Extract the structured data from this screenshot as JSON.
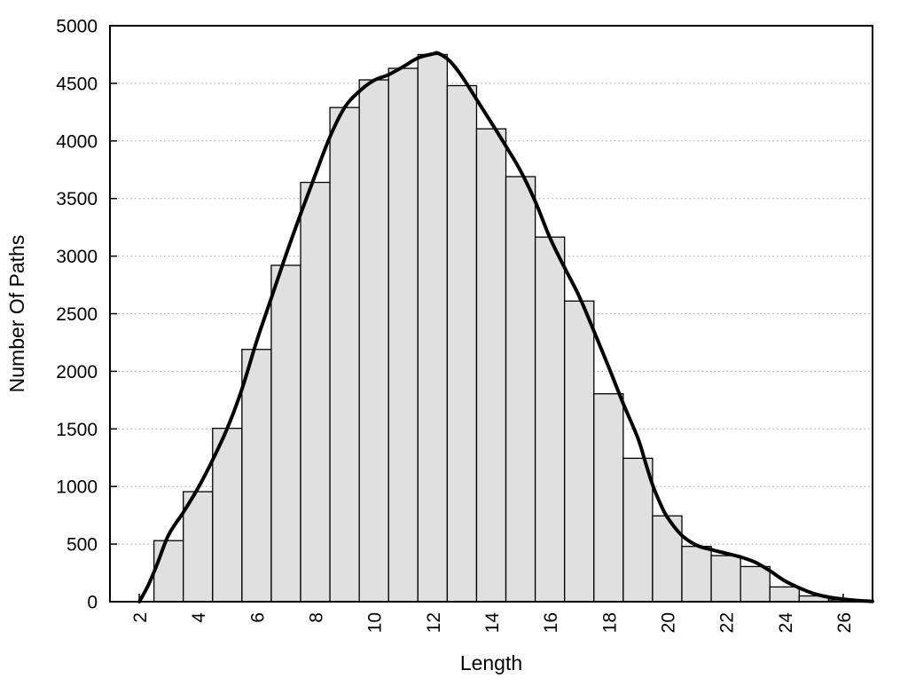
{
  "figure": {
    "background": "#ffffff",
    "title": ""
  },
  "chart_data": {
    "type": "bar",
    "subtype": "histogram-with-smoothed-curve",
    "title": "",
    "xlabel": "Length",
    "ylabel": "Number Of Paths",
    "xlim": [
      1,
      27
    ],
    "ylim": [
      0,
      5000
    ],
    "x_ticks": [
      2,
      4,
      6,
      8,
      10,
      12,
      14,
      16,
      18,
      20,
      22,
      24,
      26
    ],
    "y_ticks": [
      0,
      500,
      1000,
      1500,
      2000,
      2500,
      3000,
      3500,
      4000,
      4500,
      5000
    ],
    "grid": {
      "horizontal": true,
      "vertical": false,
      "style": "dotted"
    },
    "legend": "none",
    "bar_width": 1,
    "categories": [
      3,
      4,
      5,
      6,
      7,
      8,
      9,
      10,
      11,
      12,
      13,
      14,
      15,
      16,
      17,
      18,
      19,
      20,
      21,
      22,
      23,
      24,
      25,
      26
    ],
    "values": [
      530,
      955,
      1505,
      2190,
      2920,
      3640,
      4290,
      4530,
      4630,
      4750,
      4480,
      4105,
      3690,
      3165,
      2610,
      1805,
      1245,
      745,
      480,
      400,
      305,
      128,
      50,
      15
    ],
    "series": [
      {
        "name": "smoothed-frequency-curve",
        "type": "line",
        "points": [
          [
            2,
            0
          ],
          [
            2.3,
            140
          ],
          [
            2.6,
            320
          ],
          [
            3,
            580
          ],
          [
            3.5,
            775
          ],
          [
            4,
            985
          ],
          [
            4.5,
            1230
          ],
          [
            5,
            1505
          ],
          [
            5.5,
            1845
          ],
          [
            6,
            2260
          ],
          [
            6.5,
            2635
          ],
          [
            7,
            3010
          ],
          [
            7.5,
            3365
          ],
          [
            8,
            3705
          ],
          [
            8.5,
            4035
          ],
          [
            9,
            4290
          ],
          [
            9.5,
            4430
          ],
          [
            10,
            4525
          ],
          [
            10.5,
            4575
          ],
          [
            11,
            4645
          ],
          [
            11.5,
            4720
          ],
          [
            12,
            4755
          ],
          [
            12.2,
            4760
          ],
          [
            12.6,
            4690
          ],
          [
            13,
            4560
          ],
          [
            13.5,
            4360
          ],
          [
            14,
            4160
          ],
          [
            14.5,
            3955
          ],
          [
            15,
            3740
          ],
          [
            15.5,
            3475
          ],
          [
            16,
            3160
          ],
          [
            16.5,
            2900
          ],
          [
            17,
            2650
          ],
          [
            17.5,
            2350
          ],
          [
            18,
            2040
          ],
          [
            18.5,
            1720
          ],
          [
            19,
            1420
          ],
          [
            19.25,
            1215
          ],
          [
            19.5,
            1015
          ],
          [
            19.75,
            860
          ],
          [
            20,
            735
          ],
          [
            20.5,
            575
          ],
          [
            21,
            490
          ],
          [
            21.5,
            452
          ],
          [
            22,
            420
          ],
          [
            22.5,
            388
          ],
          [
            23,
            342
          ],
          [
            23.5,
            268
          ],
          [
            24,
            182
          ],
          [
            24.5,
            120
          ],
          [
            25,
            70
          ],
          [
            25.5,
            40
          ],
          [
            26,
            22
          ],
          [
            26.5,
            10
          ],
          [
            27,
            3
          ]
        ]
      }
    ],
    "colors": {
      "bar_fill": "#e0e0e0",
      "bar_stroke": "#000000",
      "curve": "#000000",
      "grid": "#a0a0a0",
      "axis": "#000000",
      "text": "#000000"
    }
  }
}
